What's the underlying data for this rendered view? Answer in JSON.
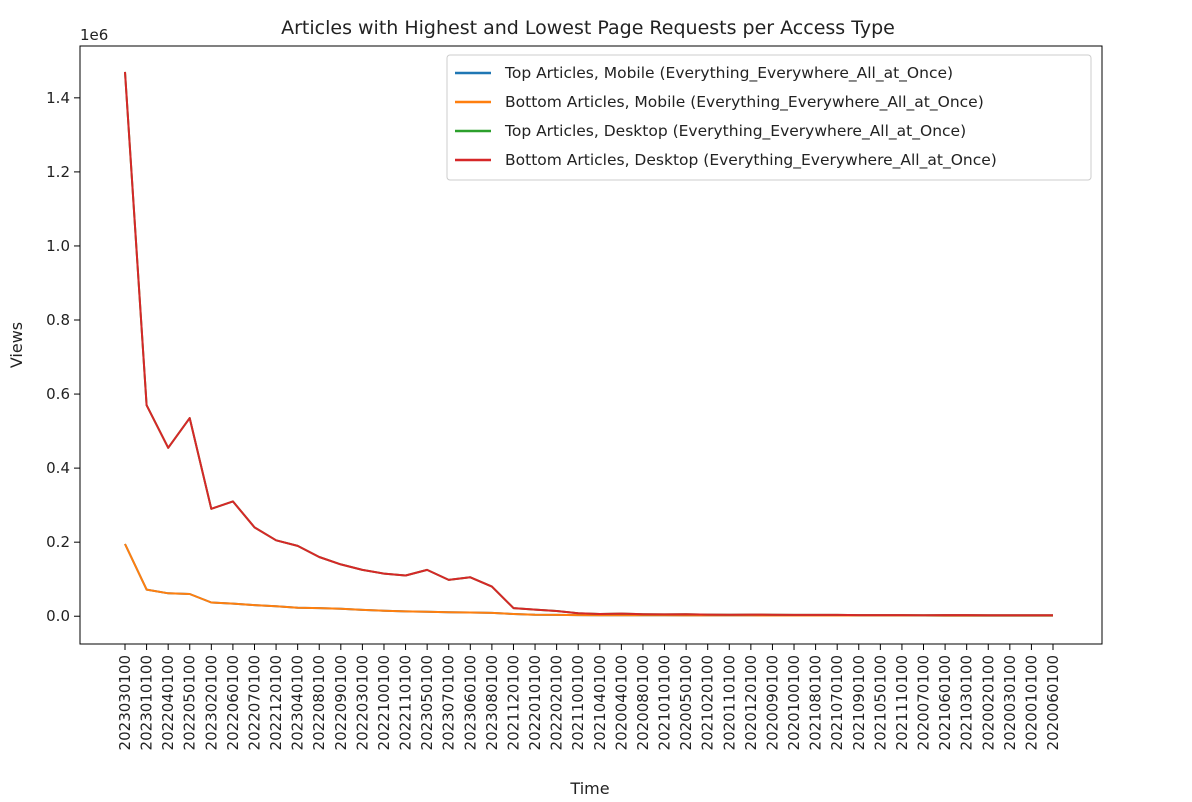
{
  "chart_data": {
    "type": "line",
    "title": "Articles with Highest and Lowest Page Requests per Access Type",
    "xlabel": "Time",
    "ylabel": "Views",
    "y_offset_label": "1e6",
    "y_scale": 1000000,
    "ylim": [
      -75000,
      1540000
    ],
    "yticks": [
      0,
      200000,
      400000,
      600000,
      800000,
      1000000,
      1200000,
      1400000
    ],
    "ytick_labels": [
      "0.0",
      "0.2",
      "0.4",
      "0.6",
      "0.8",
      "1.0",
      "1.2",
      "1.4"
    ],
    "grid": false,
    "legend_position": "top-right",
    "categories": [
      "2023030100",
      "2023010100",
      "2022040100",
      "2022050100",
      "2023020100",
      "2022060100",
      "2022070100",
      "2022120100",
      "2023040100",
      "2022080100",
      "2022090100",
      "2022030100",
      "2022100100",
      "2022110100",
      "2023050100",
      "2023070100",
      "2023060100",
      "2023080100",
      "2021120100",
      "2022010100",
      "2022020100",
      "2021100100",
      "2021040100",
      "2020040100",
      "2020080100",
      "2021010100",
      "2020050100",
      "2021020100",
      "2020110100",
      "2020120100",
      "2020090100",
      "2020100100",
      "2021080100",
      "2021070100",
      "2021090100",
      "2021050100",
      "2021110100",
      "2020070100",
      "2021060100",
      "2021030100",
      "2020020100",
      "2020030100",
      "2020010100",
      "2020060100"
    ],
    "series": [
      {
        "name": "Top Articles, Mobile (Everything_Everywhere_All_at_Once)",
        "color": "#1f77b4",
        "values": [
          195000,
          72000,
          62000,
          60000,
          37000,
          34000,
          30000,
          27000,
          23000,
          22000,
          20000,
          17000,
          15000,
          13000,
          12000,
          11000,
          10000,
          9000,
          6000,
          4000,
          3500,
          3000,
          2800,
          2600,
          2500,
          2400,
          2300,
          2300,
          2200,
          2200,
          2100,
          2100,
          2000,
          2000,
          2000,
          1900,
          1900,
          1900,
          1800,
          1800,
          1800,
          1700,
          1700,
          1700
        ]
      },
      {
        "name": "Bottom Articles, Mobile (Everything_Everywhere_All_at_Once)",
        "color": "#ff7f0e",
        "values": [
          195000,
          72000,
          62000,
          60000,
          37000,
          34000,
          30000,
          27000,
          23000,
          22000,
          20000,
          17000,
          15000,
          13000,
          12000,
          11000,
          10000,
          9000,
          6000,
          4000,
          3500,
          3000,
          2800,
          2600,
          2500,
          2400,
          2300,
          2300,
          2200,
          2200,
          2100,
          2100,
          2000,
          2000,
          2000,
          1900,
          1900,
          1900,
          1800,
          1800,
          1800,
          1700,
          1700,
          1700
        ]
      },
      {
        "name": "Top Articles, Desktop (Everything_Everywhere_All_at_Once)",
        "color": "#2ca02c",
        "values": [
          1470000,
          570000,
          455000,
          535000,
          290000,
          310000,
          240000,
          205000,
          190000,
          160000,
          140000,
          125000,
          115000,
          110000,
          125000,
          98000,
          105000,
          80000,
          22000,
          18000,
          14000,
          8000,
          6000,
          7000,
          5500,
          5000,
          5500,
          4500,
          4000,
          4500,
          4000,
          3500,
          3500,
          3500,
          3000,
          3000,
          3000,
          2500,
          3000,
          3000,
          2500,
          2500,
          2500,
          2500
        ]
      },
      {
        "name": "Bottom Articles, Desktop (Everything_Everywhere_All_at_Once)",
        "color": "#d62728",
        "values": [
          1470000,
          570000,
          455000,
          535000,
          290000,
          310000,
          240000,
          205000,
          190000,
          160000,
          140000,
          125000,
          115000,
          110000,
          125000,
          98000,
          105000,
          80000,
          22000,
          18000,
          14000,
          8000,
          6000,
          7000,
          5500,
          5000,
          5500,
          4500,
          4000,
          4500,
          4000,
          3500,
          3500,
          3500,
          3000,
          3000,
          3000,
          2500,
          3000,
          3000,
          2500,
          2500,
          2500,
          2500
        ]
      }
    ]
  }
}
